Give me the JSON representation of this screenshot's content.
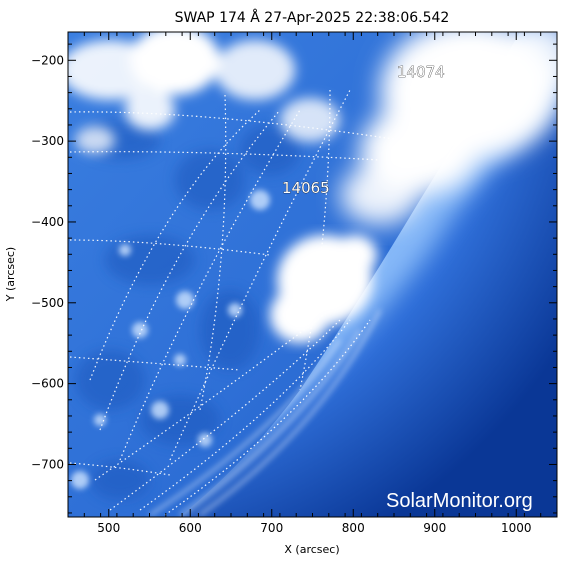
{
  "title": "SWAP 174 Å 27-Apr-2025 22:38:06.542",
  "x_axis": {
    "label": "X (arcsec)",
    "range": [
      450,
      1050
    ],
    "ticks": [
      500,
      600,
      700,
      800,
      900,
      1000
    ]
  },
  "y_axis": {
    "label": "Y (arcsec)",
    "range": [
      -765,
      -165
    ],
    "ticks": [
      -200,
      -300,
      -400,
      -500,
      -600,
      -700
    ]
  },
  "regions": [
    {
      "id": "14074",
      "label": "14074"
    },
    {
      "id": "14065",
      "label": "14065"
    }
  ],
  "watermark": "SolarMonitor.org",
  "colors": {
    "background": "#ffffff",
    "disk_dark": "#2f6fcf",
    "disk_mid": "#4f8fe8",
    "bright": "#ffffff",
    "off_limb": "#0b3a9a",
    "grid": "#ffffff"
  }
}
